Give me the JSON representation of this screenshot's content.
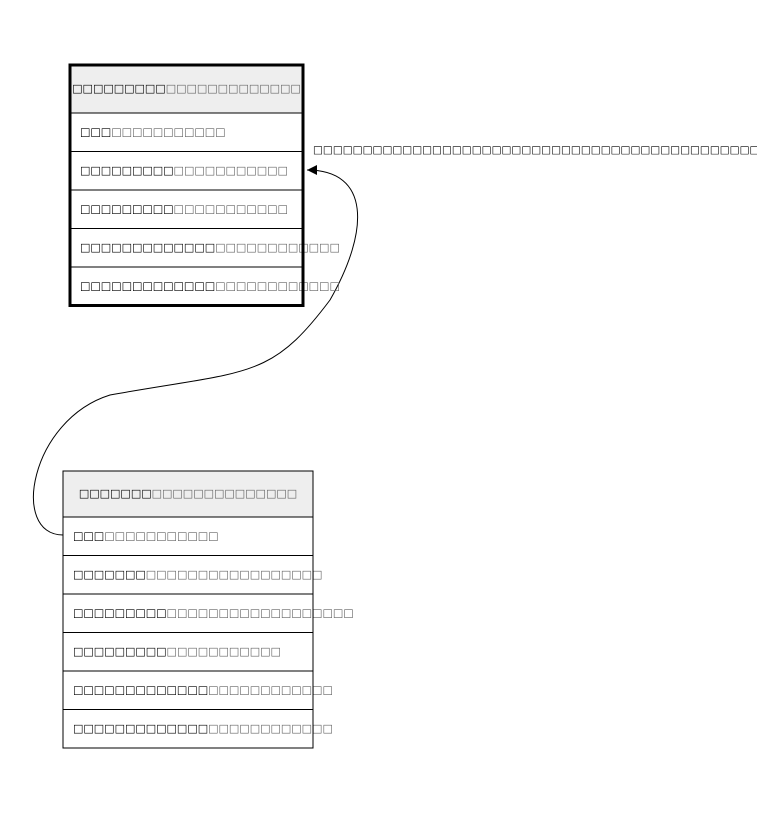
{
  "tables": [
    {
      "title": {
        "key": "□□□□□□□□□",
        "note": "□□□□□□□□□□□□□"
      },
      "rows": [
        {
          "key": "□□□",
          "note": "□□□□□□□□□□□"
        },
        {
          "key": "□□□□□□□□□",
          "note": "□□□□□□□□□□□"
        },
        {
          "key": "□□□□□□□□□",
          "note": "□□□□□□□□□□□"
        },
        {
          "key": "□□□□□□□□□□□□□",
          "note": "□□□□□□□□□□□□"
        },
        {
          "key": "□□□□□□□□□□□□□",
          "note": "□□□□□□□□□□□□"
        }
      ]
    },
    {
      "title": {
        "key": "□□□□□□□",
        "note": "□□□□□□□□□□□□□□"
      },
      "rows": [
        {
          "key": "□□□",
          "note": "□□□□□□□□□□□"
        },
        {
          "key": "□□□□□□□",
          "note": "□□□□□□□□□□□□□□□□□"
        },
        {
          "key": "□□□□□□□□□",
          "note": "□□□□□□□□□□□□□□□□□□"
        },
        {
          "key": "□□□□□□□□□",
          "note": "□□□□□□□□□□□"
        },
        {
          "key": "□□□□□□□□□□□□□",
          "note": "□□□□□□□□□□□□"
        },
        {
          "key": "□□□□□□□□□□□□□",
          "note": "□□□□□□□□□□□□"
        }
      ]
    }
  ],
  "edge": {
    "label": "□□□□□□□□□□□□□□□□□□□□□□□□□□□□□□□□□□□□□□□□□□□□□□□□□□□□"
  }
}
